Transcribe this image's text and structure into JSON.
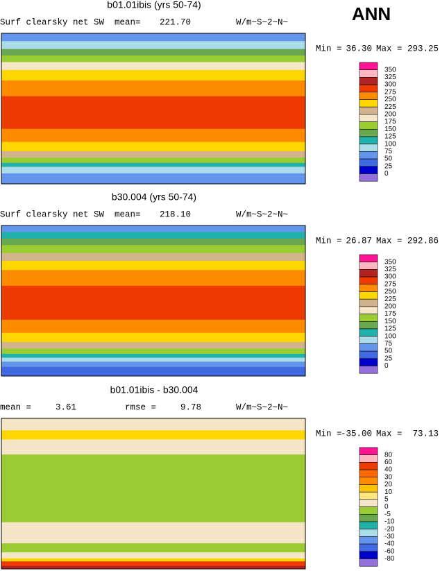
{
  "header": {
    "title": "ANN"
  },
  "panels": [
    {
      "title": "b01.01ibis (yrs 50-74)",
      "stats": [
        {
          "label": "Surf clearsky net SW"
        },
        {
          "label": "mean=",
          "value": "221.70"
        }
      ],
      "units": "W/m~S~2~N~",
      "min_label": "Min =",
      "min": "36.30",
      "max_label": "Max =",
      "max": "293.25",
      "colorbar": {
        "labels": [
          "350",
          "325",
          "300",
          "275",
          "250",
          "225",
          "200",
          "175",
          "150",
          "125",
          "100",
          "75",
          "50",
          "25",
          "0"
        ],
        "colors": [
          "#ff1493",
          "#ffb6c1",
          "#b22222",
          "#ee3b00",
          "#ff8c00",
          "#ffd700",
          "#d2b48c",
          "#f5e6c8",
          "#9acd32",
          "#6aa84f",
          "#20b2aa",
          "#aadcea",
          "#6495ed",
          "#4169e1",
          "#0000cd",
          "#9370db"
        ]
      }
    },
    {
      "title": "b30.004 (yrs 50-74)",
      "stats": [
        {
          "label": "Surf clearsky net SW"
        },
        {
          "label": "mean=",
          "value": "218.10"
        }
      ],
      "units": "W/m~S~2~N~",
      "min_label": "Min =",
      "min": "26.87",
      "max_label": "Max =",
      "max": "292.86",
      "colorbar": {
        "labels": [
          "350",
          "325",
          "300",
          "275",
          "250",
          "225",
          "200",
          "175",
          "150",
          "125",
          "100",
          "75",
          "50",
          "25",
          "0"
        ],
        "colors": [
          "#ff1493",
          "#ffb6c1",
          "#b22222",
          "#ee3b00",
          "#ff8c00",
          "#ffd700",
          "#d2b48c",
          "#f5e6c8",
          "#9acd32",
          "#6aa84f",
          "#20b2aa",
          "#aadcea",
          "#6495ed",
          "#4169e1",
          "#0000cd",
          "#9370db"
        ]
      }
    },
    {
      "title": "b01.01ibis - b30.004",
      "stats": [
        {
          "label": "mean =",
          "value": "3.61"
        },
        {
          "label": "rmse =",
          "value": "9.78"
        }
      ],
      "units": "W/m~S~2~N~",
      "min_label": "Min =",
      "min": "-35.00",
      "max_label": "Max =",
      "max": "73.13",
      "colorbar": {
        "labels": [
          "80",
          "60",
          "40",
          "30",
          "20",
          "10",
          "5",
          "0",
          "-5",
          "-10",
          "-20",
          "-30",
          "-40",
          "-60",
          "-80"
        ],
        "colors": [
          "#ff1493",
          "#ffb6c1",
          "#ee3b00",
          "#ff6a00",
          "#ff8c00",
          "#ffc400",
          "#ffe680",
          "#f5e6c8",
          "#9acd32",
          "#6aa84f",
          "#20b2aa",
          "#aadcea",
          "#6495ed",
          "#4169e1",
          "#0000cd",
          "#9370db"
        ]
      }
    }
  ]
}
